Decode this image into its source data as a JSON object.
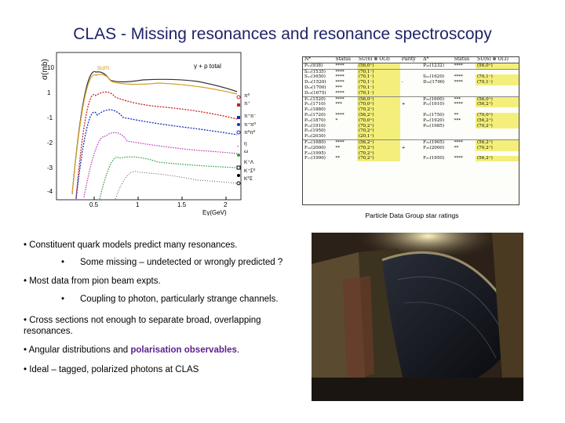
{
  "title": "CLAS - Missing resonances and resonance spectroscopy",
  "plot": {
    "y_axis_label": "σ(mb)",
    "x_axis_label": "Eγ(GeV)",
    "x_ticks": [
      "0.5",
      "1",
      "1.5",
      "2"
    ],
    "y_ticks": [
      "10",
      "1",
      "-1",
      "-2",
      "-3",
      "-4"
    ],
    "sum_label": "sum",
    "total_label": "γ + p  total",
    "legend": [
      "π⁰",
      "π⁺",
      "π⁺π⁻",
      "π⁺π⁰",
      "π⁰π⁰",
      "η",
      "ω",
      "K⁺Λ",
      "K⁺Σ⁰",
      "K⁰Σ"
    ]
  },
  "pdg_table": {
    "headers": [
      "N*",
      "Status",
      "SU(6) ⊗ O(3)",
      "Parity",
      "Δ*",
      "Status",
      "SU(6) ⊗ O(3)"
    ],
    "rows": [
      [
        "P₁₁(938)",
        "****",
        "(56,0⁺)",
        "",
        "P₃₃(1232)",
        "****",
        "(56,0⁺)"
      ],
      [
        "S₁₁(1535)",
        "****",
        "(70,1⁻)",
        "",
        "",
        "",
        ""
      ],
      [
        "S₁₁(1650)",
        "****",
        "(70,1⁻)",
        "",
        "S₃₁(1620)",
        "****",
        "(70,1⁻)"
      ],
      [
        "D₁₃(1520)",
        "****",
        "(70,1⁻)",
        "-",
        "D₃₃(1700)",
        "****",
        "(70,1⁻)"
      ],
      [
        "D₁₃(1700)",
        "***",
        "(70,1⁻)",
        "",
        "",
        "",
        ""
      ],
      [
        "D₁₅(1675)",
        "****",
        "(70,1⁻)",
        "",
        "",
        "",
        ""
      ],
      [
        "P₁₁(1520)",
        "****",
        "(56,0⁺)",
        "",
        "P₃₃(1600)",
        "***",
        "(56,0⁺)"
      ],
      [
        "P₁₁(1710)",
        "***",
        "(70,0⁺)",
        "+",
        "P₃₁(1910)",
        "****",
        "(56,2⁺)"
      ],
      [
        "P₁₁(1880)",
        "",
        "(70,2⁺)",
        "",
        "",
        "",
        ""
      ],
      [
        "P₁₃(1720)",
        "****",
        "(56,2⁺)",
        "",
        "P₃₁(1750)",
        "**",
        "(70,0⁺)"
      ],
      [
        "P₁₃(1870)",
        "*",
        "(70,0⁺)",
        "",
        "P₃₃(1920)",
        "***",
        "(56,2⁺)"
      ],
      [
        "P₁₃(1910)",
        "",
        "(70,2⁺)",
        "",
        "P₃₃(1985)",
        "",
        "(70,2⁺)"
      ],
      [
        "P₁₃(1950)",
        "",
        "(70,2⁺)",
        "",
        "",
        "",
        ""
      ],
      [
        "P₁₃(2030)",
        "",
        "(20,1⁺)",
        "",
        "",
        "",
        ""
      ],
      [
        "F₁₅(1680)",
        "****",
        "(56,2⁺)",
        "",
        "F₃₅(1905)",
        "****",
        "(56,2⁺)"
      ],
      [
        "F₁₅(2000)",
        "**",
        "(70,2⁺)",
        "+",
        "F₃₅(2000)",
        "**",
        "(70,2⁺)"
      ],
      [
        "F₁₅(1995)",
        "",
        "(70,2⁺)",
        "",
        "",
        "",
        ""
      ],
      [
        "F₁₇(1990)",
        "**",
        "(70,2⁺)",
        "",
        "F₃₇(1950)",
        "****",
        "(56,2⁺)"
      ]
    ],
    "caption": "Particle Data Group star ratings"
  },
  "bullets": [
    {
      "text": "• Constituent quark models predict many resonances."
    },
    {
      "text": "Some missing – undetected or wrongly predicted ?"
    },
    {
      "text": "• Most data from pion beam expts."
    },
    {
      "text": "Coupling to photon, particularly strange channels."
    },
    {
      "text": "• Cross sections not enough to separate broad, overlapping resonances."
    },
    {
      "text_before": "• Angular distributions and ",
      "highlight": "polarisation observables",
      "text_after": "."
    },
    {
      "text": "• Ideal – tagged, polarized photons at CLAS"
    }
  ],
  "sub_bullet_marker": "•",
  "colors": {
    "title": "#1f2466",
    "highlight": "#5b1f8a",
    "pdg_highlight": "#f3ef7a"
  }
}
